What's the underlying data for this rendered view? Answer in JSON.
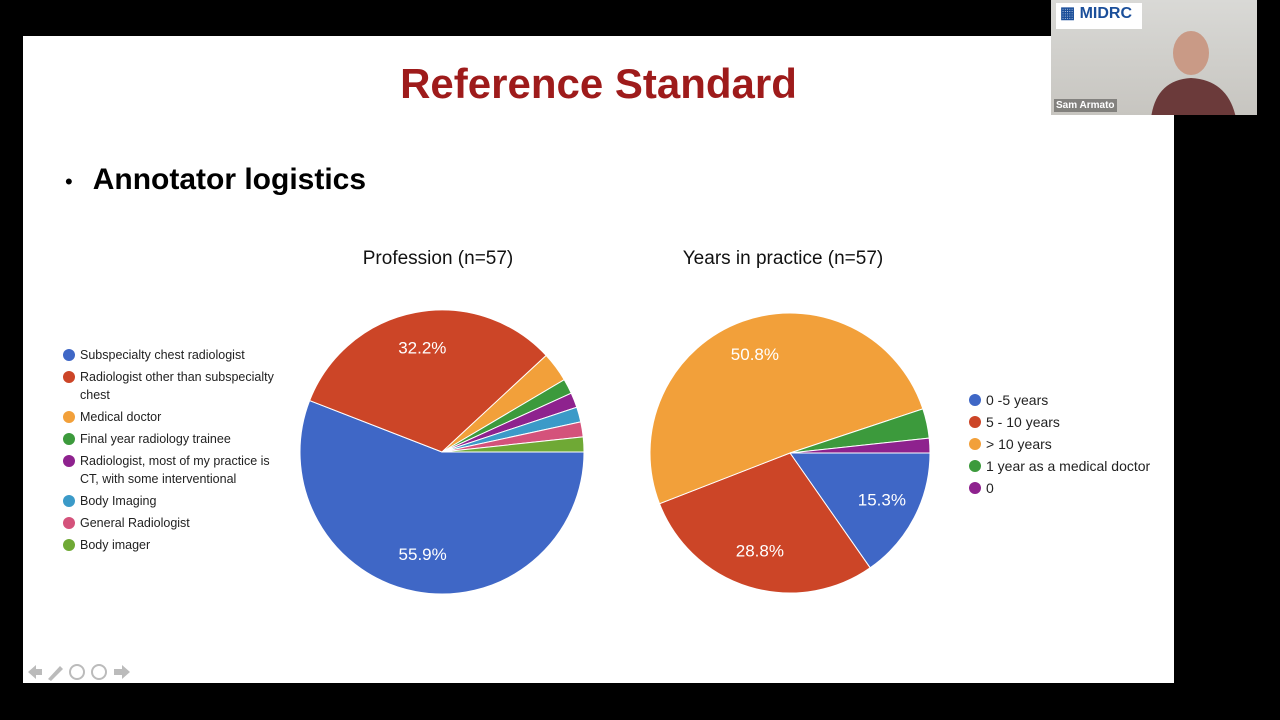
{
  "slide": {
    "title": "Reference Standard",
    "bullet": "Annotator logistics"
  },
  "video_tile": {
    "logo": "MIDRC",
    "name": "Sam Armato"
  },
  "chart_data": [
    {
      "type": "pie",
      "title": "Profession (n=57)",
      "categories": [
        "Subspecialty chest radiologist",
        "Radiologist other than subspecialty chest",
        "Medical doctor",
        "Final year radiology trainee",
        "Radiologist, most of my practice is CT, with some interventional",
        "Body Imaging",
        "General Radiologist",
        "Body imager"
      ],
      "values": [
        55.9,
        32.2,
        3.4,
        1.7,
        1.7,
        1.7,
        1.7,
        1.7
      ],
      "value_labels": [
        "55.9%",
        "32.2%",
        null,
        null,
        null,
        null,
        null,
        null
      ],
      "colors": [
        "#3f67c6",
        "#cc4527",
        "#f2a03a",
        "#3c9a3c",
        "#8e228e",
        "#3b9ac8",
        "#d4527b",
        "#6fa935"
      ],
      "legend": "left"
    },
    {
      "type": "pie",
      "title": "Years in practice (n=57)",
      "categories": [
        "0 -5 years",
        "5 - 10 years",
        "> 10 years",
        "1 year as a medical doctor",
        "0"
      ],
      "values": [
        15.3,
        28.8,
        50.8,
        3.4,
        1.7
      ],
      "value_labels": [
        "15.3%",
        "28.8%",
        "50.8%",
        null,
        null
      ],
      "colors": [
        "#3f67c6",
        "#cc4527",
        "#f2a03a",
        "#3c9a3c",
        "#8e228e"
      ],
      "legend": "right"
    }
  ]
}
